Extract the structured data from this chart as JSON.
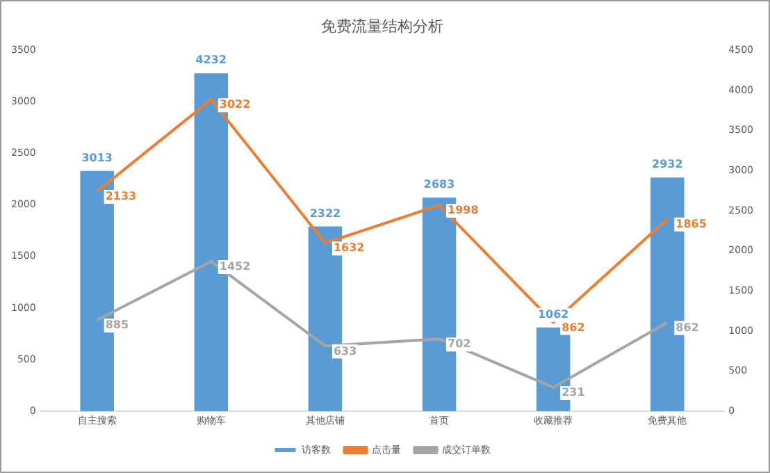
{
  "chart_data": {
    "type": "bar",
    "title": "免费流量结构分析",
    "categories": [
      "自主搜索",
      "购物车",
      "其他店铺",
      "首页",
      "收藏推荐",
      "免费其他"
    ],
    "series": [
      {
        "name": "访客数",
        "axis": "y2",
        "color": "#5b9bd5",
        "values": [
          3013,
          4232,
          2322,
          2683,
          1062,
          2932
        ]
      },
      {
        "name": "点击量",
        "type": "line",
        "color": "#ed7d31",
        "values": [
          2133,
          3022,
          1632,
          1998,
          862,
          1865
        ]
      },
      {
        "name": "成交订单数",
        "type": "line",
        "color": "#a5a5a5",
        "values": [
          885,
          1452,
          633,
          702,
          231,
          862
        ]
      }
    ],
    "ylim": [
      0,
      3500
    ],
    "yticks": [
      0,
      500,
      1000,
      1500,
      2000,
      2500,
      3000,
      3500
    ],
    "y2lim": [
      0,
      4500
    ],
    "y2ticks": [
      0,
      500,
      1000,
      1500,
      2000,
      2500,
      3000,
      3500,
      4000,
      4500
    ],
    "data_labels": true,
    "grid": false,
    "legend": "bottom",
    "marker": "none",
    "line_style": "solid"
  }
}
